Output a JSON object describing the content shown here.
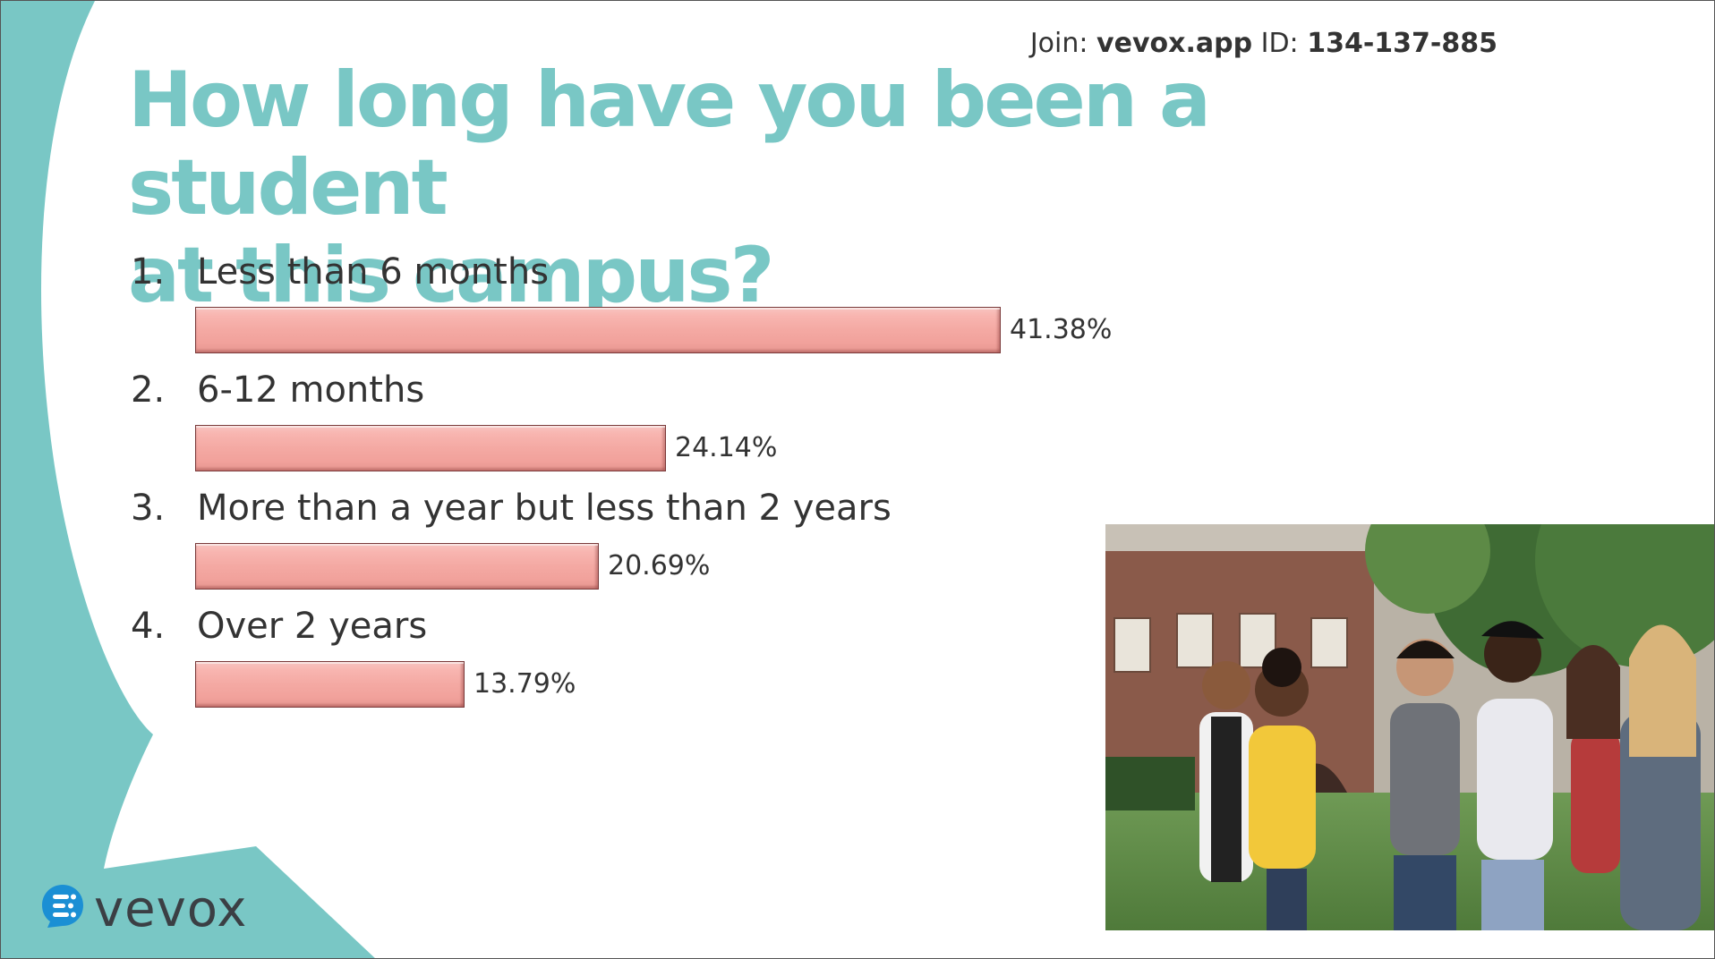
{
  "join": {
    "prefix": "Join:",
    "site": "vevox.app",
    "id_label": "ID:",
    "id_value": "134-137-885"
  },
  "question": {
    "title_line1": "How long have you been a student",
    "title_line2": "at this campus?"
  },
  "chart_data": {
    "type": "bar",
    "orientation": "horizontal",
    "categories": [
      "Less than 6 months",
      "6-12 months",
      "More than a year but less than 2 years",
      "Over 2 years"
    ],
    "numbers": [
      "1.",
      "2.",
      "3.",
      "4."
    ],
    "values": [
      41.38,
      24.14,
      20.69,
      13.79
    ],
    "value_labels": [
      "41.38%",
      "24.14%",
      "20.69%",
      "13.79%"
    ],
    "unit": "%",
    "xlim": [
      0,
      100
    ],
    "grid": false,
    "bar_color": "#f4a9a3"
  },
  "colors": {
    "title": "#79c7c5",
    "swoosh": "#79c7c5",
    "bar": "#f4a9a3",
    "text": "#333333"
  },
  "brand": {
    "name": "vevox",
    "icon": "vevox-logo-icon"
  },
  "photo": {
    "icon": "students-photo"
  }
}
